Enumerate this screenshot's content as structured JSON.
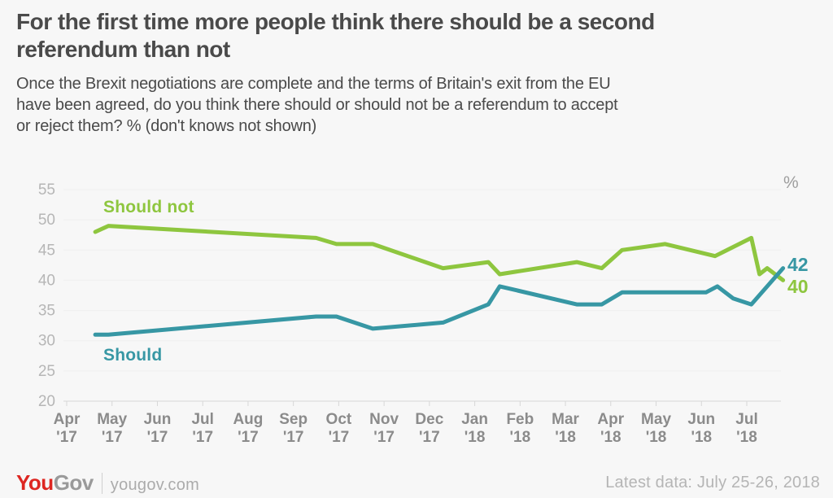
{
  "header": {
    "title_lines": [
      "For the first time more people think there should be a second",
      "referendum than not"
    ],
    "subtitle_lines": [
      "Once the Brexit negotiations are complete and the terms of Britain's exit from the EU",
      "have been agreed, do you think there should or should not be a referendum to accept",
      "or reject them? % (don't knows not shown)"
    ]
  },
  "chart_data": {
    "type": "line",
    "unit_label": "%",
    "ylim": [
      20,
      55
    ],
    "grid": "horizontal",
    "y_ticks": [
      55,
      50,
      45,
      40,
      35,
      30,
      25,
      20
    ],
    "x_unit": "months since Apr 2017 tick",
    "x_ticks": [
      {
        "m": "Apr",
        "y": "'17"
      },
      {
        "m": "May",
        "y": "'17"
      },
      {
        "m": "Jun",
        "y": "'17"
      },
      {
        "m": "Jul",
        "y": "'17"
      },
      {
        "m": "Aug",
        "y": "'17"
      },
      {
        "m": "Sep",
        "y": "'17"
      },
      {
        "m": "Oct",
        "y": "'17"
      },
      {
        "m": "Nov",
        "y": "'17"
      },
      {
        "m": "Dec",
        "y": "'17"
      },
      {
        "m": "Jan",
        "y": "'18"
      },
      {
        "m": "Feb",
        "y": "'18"
      },
      {
        "m": "Mar",
        "y": "'18"
      },
      {
        "m": "Apr",
        "y": "'18"
      },
      {
        "m": "May",
        "y": "'18"
      },
      {
        "m": "Jun",
        "y": "'18"
      },
      {
        "m": "Jul",
        "y": "'18"
      }
    ],
    "series": [
      {
        "id": "should-not",
        "name": "Should not",
        "color": "#8ec63f",
        "end_value": 40,
        "points": [
          [
            0.63,
            48
          ],
          [
            0.92,
            49
          ],
          [
            5.5,
            47
          ],
          [
            5.95,
            46
          ],
          [
            6.75,
            46
          ],
          [
            8.3,
            42
          ],
          [
            9.3,
            43
          ],
          [
            9.55,
            41
          ],
          [
            11.25,
            43
          ],
          [
            11.8,
            42
          ],
          [
            12.25,
            45
          ],
          [
            13.2,
            46
          ],
          [
            14.3,
            44
          ],
          [
            15.1,
            47
          ],
          [
            15.28,
            41
          ],
          [
            15.45,
            42
          ],
          [
            15.8,
            40
          ]
        ]
      },
      {
        "id": "should",
        "name": "Should",
        "color": "#3797a4",
        "end_value": 42,
        "points": [
          [
            0.63,
            31
          ],
          [
            0.92,
            31
          ],
          [
            5.5,
            34
          ],
          [
            5.95,
            34
          ],
          [
            6.75,
            32
          ],
          [
            8.3,
            33
          ],
          [
            9.3,
            36
          ],
          [
            9.55,
            39
          ],
          [
            11.25,
            36
          ],
          [
            11.8,
            36
          ],
          [
            12.25,
            38
          ],
          [
            13.2,
            38
          ],
          [
            14.1,
            38
          ],
          [
            14.35,
            39
          ],
          [
            14.7,
            37
          ],
          [
            15.1,
            36
          ],
          [
            15.8,
            42
          ]
        ]
      }
    ]
  },
  "footer": {
    "logo_you": "You",
    "logo_gov": "Gov",
    "site": "yougov.com",
    "latest": "Latest data: July 25-26, 2018"
  }
}
